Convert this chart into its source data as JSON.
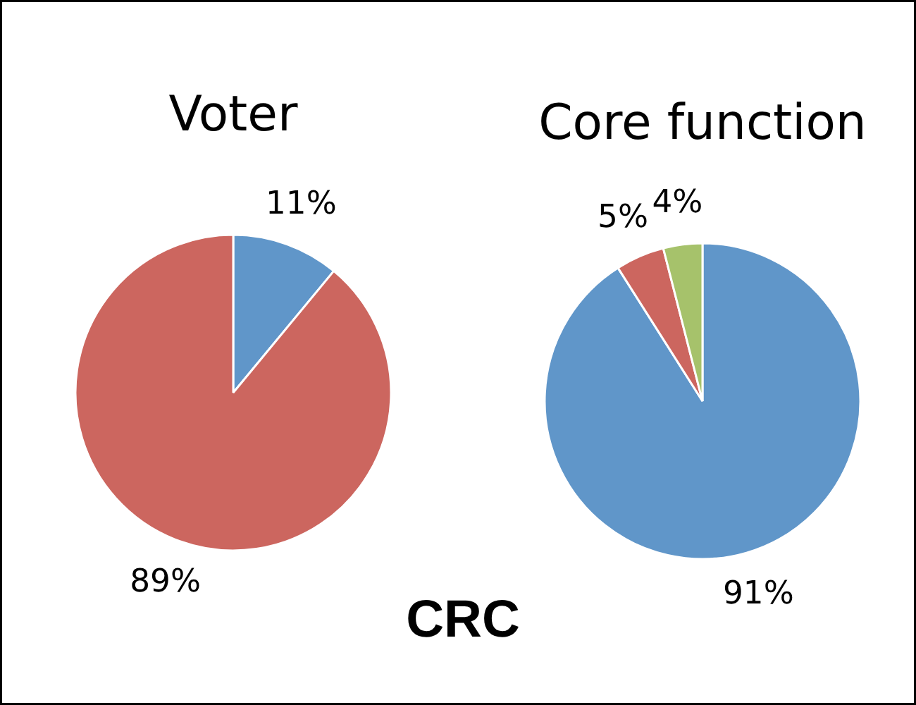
{
  "chart_data": [
    {
      "type": "pie",
      "title": "Voter",
      "categories": [
        null,
        null
      ],
      "values": [
        11,
        89
      ],
      "colors": [
        "#6096c9",
        "#cc665f"
      ],
      "value_labels": [
        "11%",
        "89%"
      ],
      "annotations": [
        "CRC"
      ]
    },
    {
      "type": "pie",
      "title": "Core function",
      "categories": [
        null,
        null,
        null
      ],
      "values": [
        91,
        5,
        4
      ],
      "colors": [
        "#6096c9",
        "#cc665f",
        "#a6c26b"
      ],
      "value_labels": [
        "91%",
        "5%",
        "4%"
      ]
    }
  ]
}
